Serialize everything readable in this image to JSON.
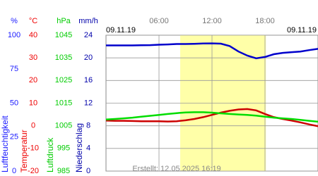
{
  "chart_data": {
    "type": "line",
    "date_left": "09.11.19",
    "date_right": "09.11.19",
    "footer": "Erstellt: 12.05.2025 16:19",
    "x": [
      0,
      1,
      2,
      3,
      4,
      5,
      6,
      7,
      8,
      9,
      10,
      11,
      12,
      13,
      14,
      15,
      16,
      17,
      18,
      19,
      20,
      21,
      22,
      23,
      24
    ],
    "xlim": [
      0,
      24
    ],
    "xticks": [
      {
        "value": 6,
        "label": "06:00"
      },
      {
        "value": 12,
        "label": "12:00"
      },
      {
        "value": 18,
        "label": "18:00"
      }
    ],
    "daylight": [
      8.4,
      18.1
    ],
    "grid": true,
    "axes": [
      {
        "unit": "%",
        "label": "Luftfeuchtigkeit",
        "color": "#1a1aff",
        "line_color": "#0000cc",
        "ylim": [
          0,
          100
        ],
        "yticks": [
          0,
          25,
          50,
          75,
          100
        ],
        "values": [
          92.5,
          92.5,
          92.5,
          92.5,
          92.6,
          92.7,
          93,
          93.2,
          93.5,
          93.5,
          93.7,
          93.9,
          94,
          93.8,
          92,
          88,
          85,
          83,
          84,
          86,
          87,
          87.5,
          88,
          89,
          90
        ]
      },
      {
        "unit": "°C",
        "label": "Temperatur",
        "color": "#ee0000",
        "line_color": "#cc0000",
        "ylim": [
          -20,
          40
        ],
        "yticks": [
          -20,
          -10,
          0,
          10,
          20,
          30,
          40
        ],
        "values": [
          2.3,
          2.2,
          2.2,
          2.1,
          2.0,
          2.0,
          2.0,
          1.9,
          2.0,
          2.4,
          3.0,
          3.8,
          4.8,
          5.8,
          6.6,
          7.2,
          7.4,
          6.8,
          5.2,
          3.8,
          3.0,
          2.3,
          1.5,
          0.6,
          -0.2
        ]
      },
      {
        "unit": "hPa",
        "label": "Luftdruck",
        "color": "#00cc00",
        "line_color": "#00dd00",
        "ylim": [
          985,
          1045
        ],
        "yticks": [
          985,
          995,
          1005,
          1015,
          1025,
          1035,
          1045
        ],
        "values": [
          1007.8,
          1008.0,
          1008.3,
          1008.6,
          1009.0,
          1009.4,
          1009.8,
          1010.2,
          1010.6,
          1010.9,
          1011.0,
          1011.0,
          1010.8,
          1010.5,
          1010.2,
          1010.0,
          1009.8,
          1009.5,
          1009.0,
          1008.6,
          1008.3,
          1008.0,
          1007.6,
          1007.2,
          1006.8
        ]
      },
      {
        "unit": "mm/h",
        "label": "Niederschlag",
        "color": "#0000aa",
        "ylim": [
          0,
          24
        ],
        "yticks": [
          0,
          4,
          8,
          12,
          16,
          20,
          24
        ]
      }
    ]
  }
}
